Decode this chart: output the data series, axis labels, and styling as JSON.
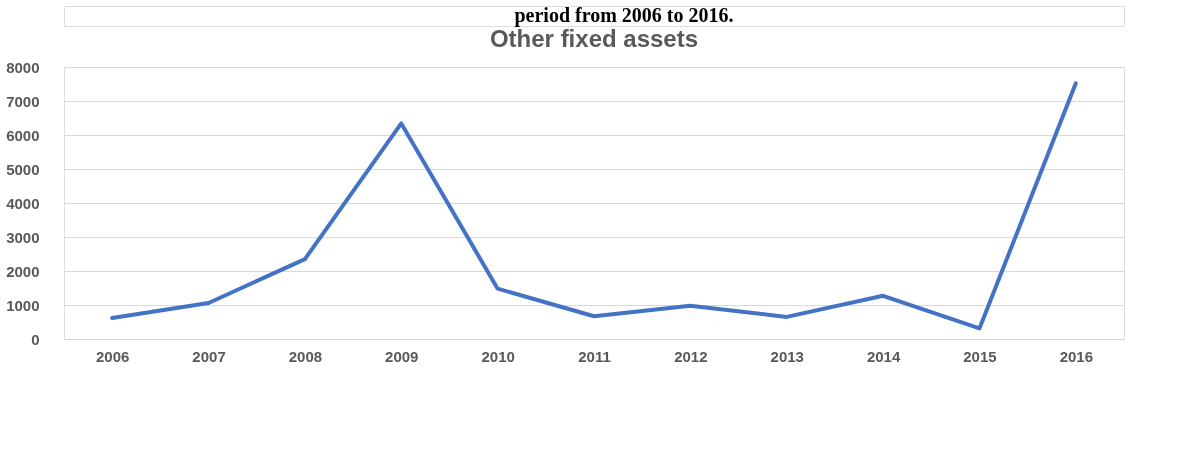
{
  "chart_data": {
    "type": "line",
    "title": "Other fixed assets",
    "annotations": [
      "period from 2006 to 2016."
    ],
    "categories": [
      "2006",
      "2007",
      "2008",
      "2009",
      "2010",
      "2011",
      "2012",
      "2013",
      "2014",
      "2015",
      "2016"
    ],
    "series": [
      {
        "color": "#4472c4",
        "values": [
          620,
          1060,
          2350,
          6340,
          1480,
          670,
          980,
          650,
          1270,
          310,
          7520
        ]
      }
    ],
    "ylim": [
      0,
      8000
    ],
    "yticks": [
      0,
      1000,
      2000,
      3000,
      4000,
      5000,
      6000,
      7000,
      8000
    ],
    "grid": "y",
    "legend": false,
    "marker": "none",
    "line_style": "solid"
  }
}
